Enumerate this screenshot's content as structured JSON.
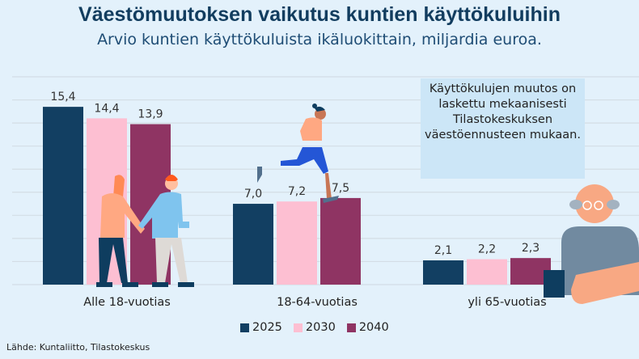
{
  "title": "Väestömuutoksen vaikutus kuntien käyttökuluihin",
  "subtitle": "Arvio kuntien käyttökuluista ikäluokittain, miljardia euroa.",
  "note": "Käyttökulujen muutos on laskettu mekaanisesti Tilastokeskuksen väestöennusteen mukaan.",
  "source": "Lähde: Kuntaliitto, Tilastokeskus",
  "chart_data": {
    "type": "bar",
    "title": "Väestömuutoksen vaikutus kuntien käyttökuluihin",
    "subtitle": "Arvio kuntien käyttökuluista ikäluokittain, miljardia euroa.",
    "categories": [
      "Alle 18-vuotias",
      "18-64-vuotias",
      "yli 65-vuotias"
    ],
    "series": [
      {
        "name": "2025",
        "color": "#123f62",
        "values": [
          15.4,
          7.0,
          2.1
        ],
        "labels": [
          "15,4",
          "7,0",
          "2,1"
        ]
      },
      {
        "name": "2030",
        "color": "#fdbfd2",
        "values": [
          14.4,
          7.2,
          2.2
        ],
        "labels": [
          "14,4",
          "7,2",
          "2,2"
        ]
      },
      {
        "name": "2040",
        "color": "#8f3463",
        "values": [
          13.9,
          7.5,
          2.3
        ],
        "labels": [
          "13,9",
          "7,5",
          "2,3"
        ]
      }
    ],
    "ylim": [
      0,
      18
    ],
    "grid": true,
    "legend": "bottom"
  }
}
